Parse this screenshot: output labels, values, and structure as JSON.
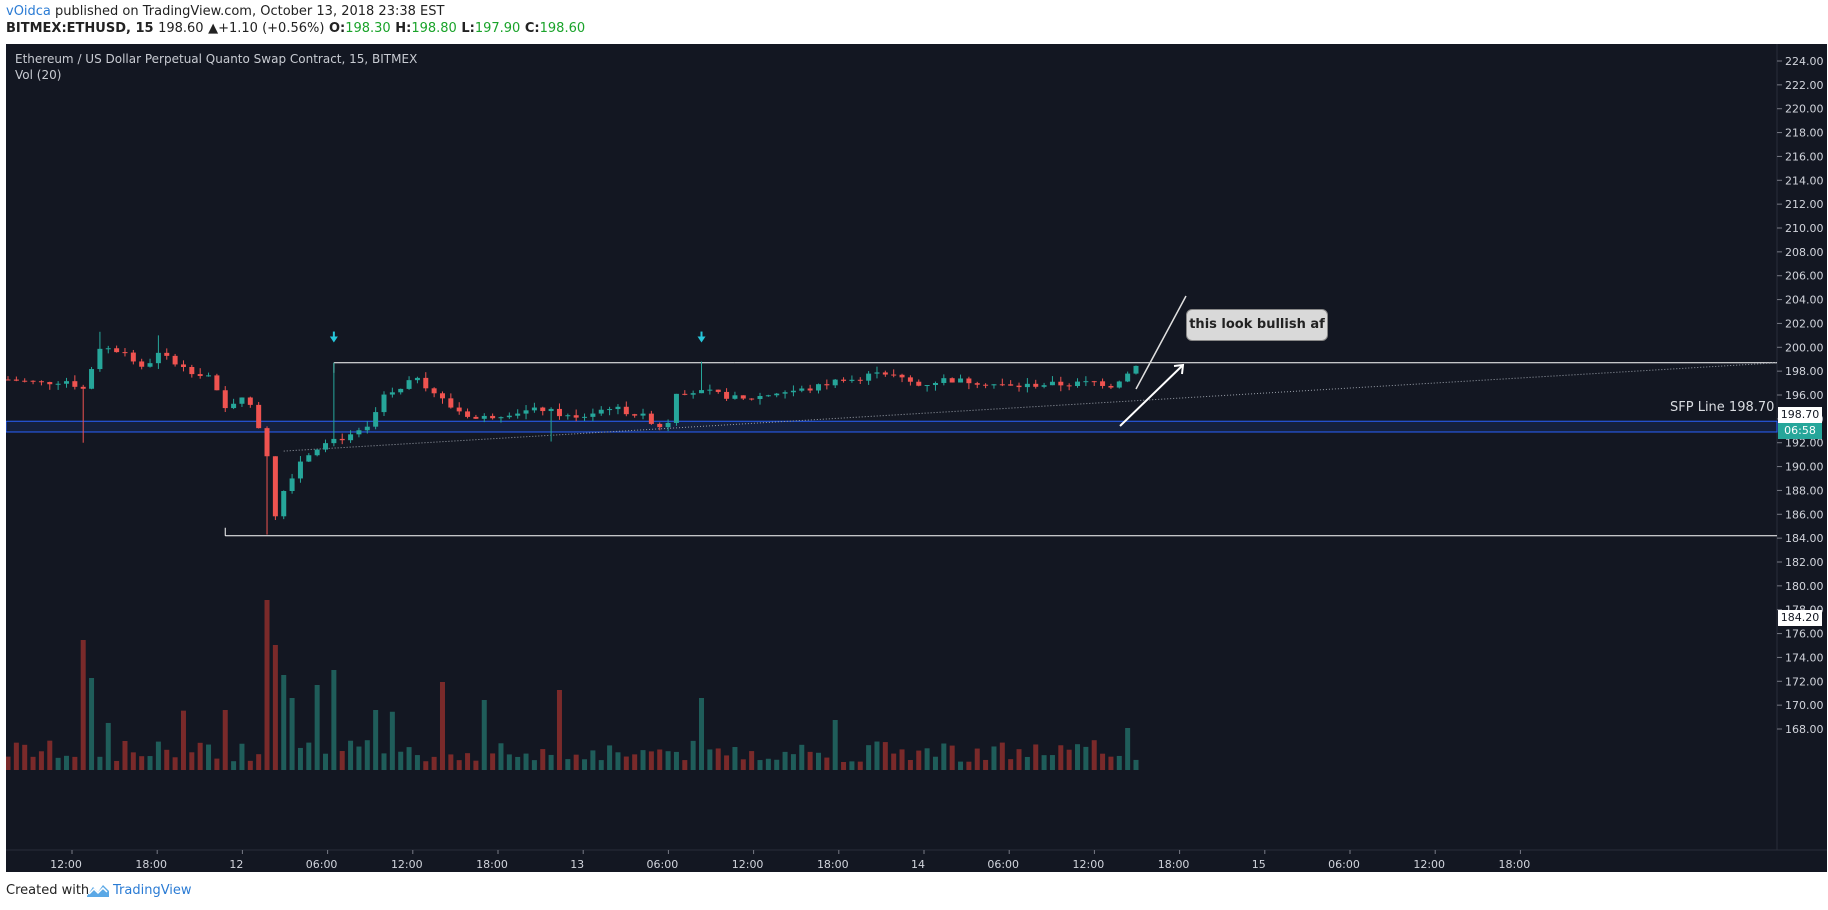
{
  "header": {
    "author": "vOidca",
    "published_text": " published on TradingView.com, October 13, 2018 23:38 EST",
    "symbol": "BITMEX:ETHUSD, 15",
    "last": "198.60",
    "change": "▲+1.10 (+0.56%)",
    "o_label": "O:",
    "o_value": "198.30",
    "h_label": "H:",
    "h_value": "198.80",
    "l_label": "L:",
    "l_value": "197.90",
    "c_label": "C:",
    "c_value": "198.60"
  },
  "legend": {
    "title": "Ethereum / US Dollar Perpetual Quanto Swap Contract, 15, BITMEX",
    "indicator": "Vol (20)"
  },
  "annotations": {
    "callout": "this look bullish af",
    "sfp_label": "SFP Line 198.70"
  },
  "price_tags": {
    "sfp": "198.70",
    "countdown": "06:58",
    "low": "184.20"
  },
  "footer": {
    "created_with": "Created with",
    "brand": "TradingView"
  },
  "colors": {
    "background": "#131722",
    "up": "#26a69a",
    "down": "#ef5350",
    "vol_up": "#1f5d5a",
    "vol_down": "#7a2a2a",
    "box": "#ffffff",
    "zone": "#2962ff",
    "marker": "#26c6da"
  },
  "chart_data": {
    "type": "candlestick",
    "title": "Ethereum / US Dollar Perpetual Quanto Swap Contract, 15, BITMEX",
    "y_axis": {
      "ticks": [
        "224.00",
        "222.00",
        "220.00",
        "218.00",
        "216.00",
        "214.00",
        "212.00",
        "210.00",
        "208.00",
        "206.00",
        "204.00",
        "202.00",
        "200.00",
        "198.00",
        "196.00",
        "194.00",
        "192.00",
        "190.00",
        "188.00",
        "186.00",
        "184.00",
        "182.00",
        "180.00",
        "178.00",
        "176.00",
        "174.00",
        "172.00",
        "170.00",
        "168.00"
      ],
      "range": [
        168,
        225
      ]
    },
    "x_axis": {
      "ticks": [
        "12:00",
        "18:00",
        "12",
        "06:00",
        "12:00",
        "18:00",
        "13",
        "06:00",
        "12:00",
        "18:00",
        "14",
        "06:00",
        "12:00",
        "18:00",
        "15",
        "06:00",
        "12:00",
        "18:00"
      ]
    },
    "levels": {
      "sfp_line": 198.7,
      "range_low": 184.2,
      "support_zone": [
        192.9,
        193.8
      ]
    },
    "price_path": [
      [
        0,
        197.3
      ],
      [
        4,
        197.0
      ],
      [
        7,
        197.2
      ],
      [
        9,
        196.5
      ],
      [
        11,
        200.0
      ],
      [
        14,
        199.6
      ],
      [
        16,
        198.2
      ],
      [
        18,
        199.4
      ],
      [
        20,
        198.8
      ],
      [
        22,
        198.0
      ],
      [
        24,
        197.6
      ],
      [
        26,
        194.8
      ],
      [
        28,
        196.0
      ],
      [
        29.5,
        194.5
      ],
      [
        31,
        191.0
      ],
      [
        32,
        186.0
      ],
      [
        33,
        188.0
      ],
      [
        35,
        190.5
      ],
      [
        38,
        192.2
      ],
      [
        41,
        192.5
      ],
      [
        43,
        193.2
      ],
      [
        45,
        195.8
      ],
      [
        47,
        196.4
      ],
      [
        49,
        197.6
      ],
      [
        50,
        196.8
      ],
      [
        53,
        195.0
      ],
      [
        56,
        194.0
      ],
      [
        60,
        194.5
      ],
      [
        64,
        194.8
      ],
      [
        68,
        194.0
      ],
      [
        72,
        195.0
      ],
      [
        76,
        194.2
      ],
      [
        78,
        193.4
      ],
      [
        79,
        193.8
      ],
      [
        80,
        196.3
      ],
      [
        84,
        196.2
      ],
      [
        88,
        195.6
      ],
      [
        92,
        196.2
      ],
      [
        96,
        196.5
      ],
      [
        100,
        197.4
      ],
      [
        102,
        197.2
      ],
      [
        104,
        198.1
      ],
      [
        106,
        197.6
      ],
      [
        109,
        196.8
      ],
      [
        112,
        197.3
      ],
      [
        116,
        197.1
      ],
      [
        120,
        196.7
      ],
      [
        124,
        196.9
      ],
      [
        127,
        196.9
      ],
      [
        130,
        197.1
      ],
      [
        132,
        196.8
      ],
      [
        134,
        197.8
      ],
      [
        135,
        198.6
      ]
    ]
  }
}
